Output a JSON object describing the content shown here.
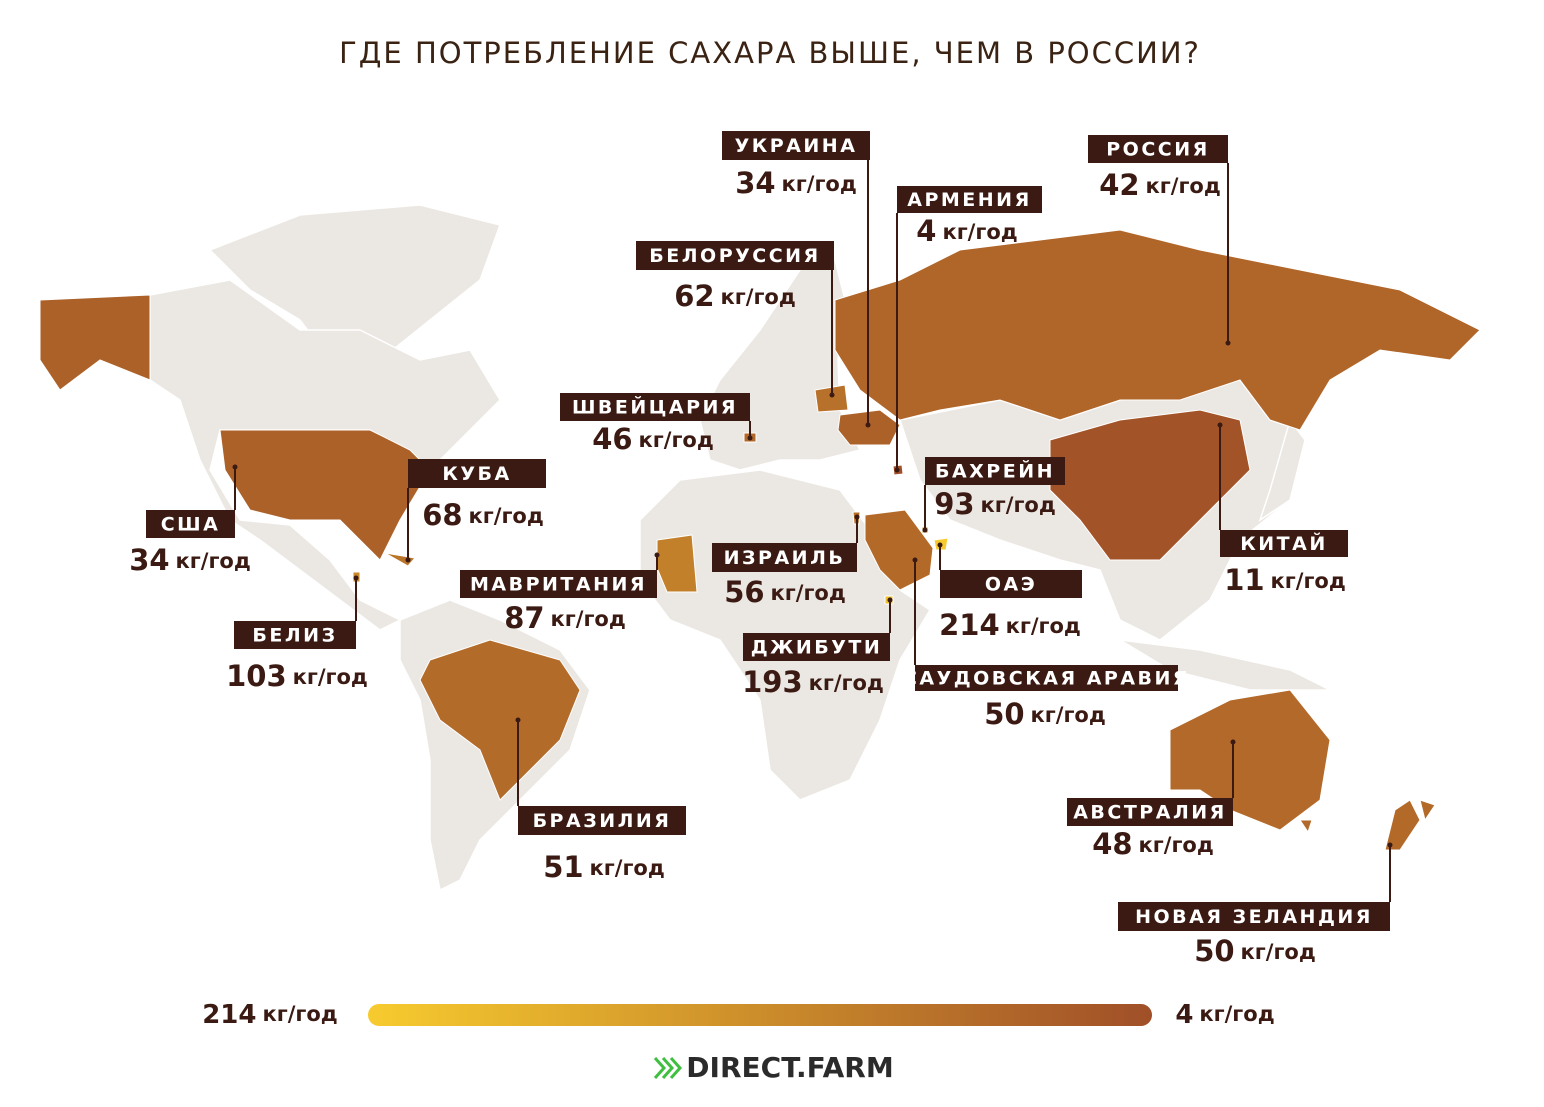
{
  "header": {
    "title": "ГДЕ ПОТРЕБЛЕНИЕ САХАРА ВЫШЕ, ЧЕМ В РОССИИ?"
  },
  "unit": "кг/год",
  "countries": [
    {
      "name": "УКРАИНА",
      "value": 34
    },
    {
      "name": "РОССИЯ",
      "value": 42
    },
    {
      "name": "АРМЕНИЯ",
      "value": 4
    },
    {
      "name": "БЕЛОРУССИЯ",
      "value": 62
    },
    {
      "name": "ШВЕЙЦАРИЯ",
      "value": 46
    },
    {
      "name": "КУБА",
      "value": 68
    },
    {
      "name": "США",
      "value": 34
    },
    {
      "name": "БАХРЕЙН",
      "value": 93
    },
    {
      "name": "КИТАЙ",
      "value": 11
    },
    {
      "name": "ИЗРАИЛЬ",
      "value": 56
    },
    {
      "name": "МАВРИТАНИЯ",
      "value": 87
    },
    {
      "name": "ОАЭ",
      "value": 214
    },
    {
      "name": "БЕЛИЗ",
      "value": 103
    },
    {
      "name": "ДЖИБУТИ",
      "value": 193
    },
    {
      "name": "САУДОВСКАЯ АРАВИЯ",
      "value": 50
    },
    {
      "name": "БРАЗИЛИЯ",
      "value": 51
    },
    {
      "name": "АВСТРАЛИЯ",
      "value": 48
    },
    {
      "name": "НОВАЯ ЗЕЛАНДИЯ",
      "value": 50
    }
  ],
  "legend": {
    "max": 214,
    "min": 4,
    "max_color": "#f7cb2e",
    "min_color": "#a04f28"
  },
  "footer": {
    "brand": "DIRECT.FARM"
  }
}
